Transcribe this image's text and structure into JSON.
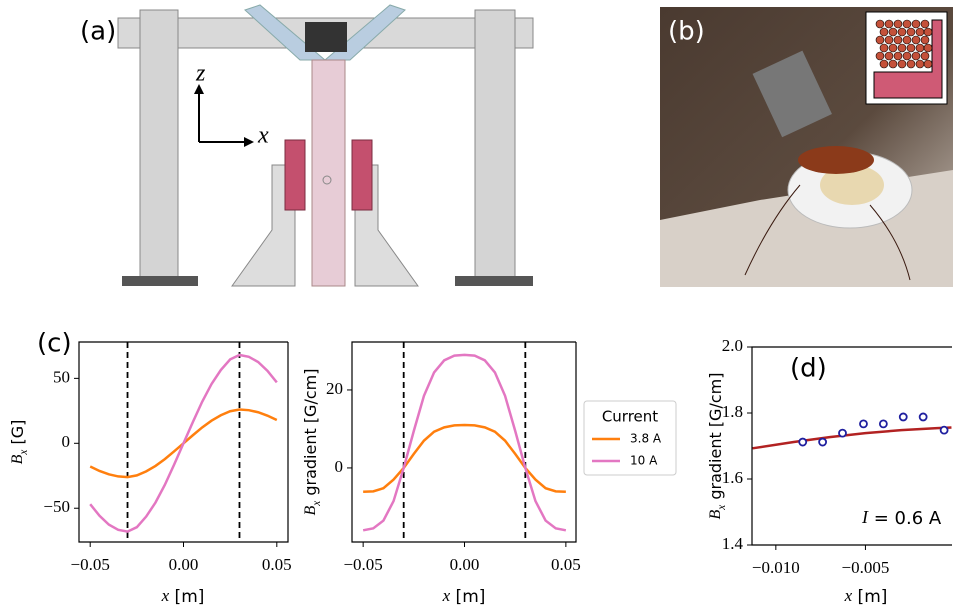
{
  "panels": {
    "a": {
      "label": "(a)",
      "axis_z": "z",
      "axis_x": "x"
    },
    "b": {
      "label": "(b)"
    }
  },
  "chart_data": [
    {
      "type": "line",
      "label": "(c)",
      "xlabel": [
        "x",
        " [m]"
      ],
      "ylabel": [
        "B",
        "x",
        " [G]"
      ],
      "x": [
        -0.05,
        -0.045,
        -0.04,
        -0.035,
        -0.03,
        -0.025,
        -0.02,
        -0.015,
        -0.01,
        -0.005,
        0,
        0.005,
        0.01,
        0.015,
        0.02,
        0.025,
        0.03,
        0.035,
        0.04,
        0.045,
        0.05
      ],
      "series": [
        {
          "color": "#ff7f0e",
          "values": [
            -17.9,
            -21.3,
            -23.9,
            -25.5,
            -26,
            -24.7,
            -21.6,
            -17.4,
            -12.2,
            -6.2,
            0,
            6.2,
            12.2,
            17.4,
            21.6,
            24.7,
            26,
            25.5,
            23.9,
            21.3,
            17.9
          ]
        },
        {
          "color": "#e377c2",
          "values": [
            -46.9,
            -55.8,
            -62.6,
            -66.6,
            -68,
            -64.6,
            -56.4,
            -45.6,
            -32,
            -16.3,
            0,
            16.3,
            32,
            45.6,
            56.4,
            64.6,
            68,
            66.6,
            62.6,
            55.8,
            46.9
          ]
        }
      ],
      "xlim": [
        -0.056,
        0.056
      ],
      "ylim": [
        -76,
        78
      ],
      "xticks": [
        {
          "value": -0.05,
          "label": "−0.05"
        },
        {
          "value": 0,
          "label": "0.00"
        },
        0.05
      ],
      "yticks": [
        {
          "value": -50,
          "label": "−50"
        },
        0,
        50
      ],
      "vlines": [
        -0.03,
        0.03
      ]
    },
    {
      "type": "line",
      "xlabel": [
        "x",
        " [m]"
      ],
      "ylabel": [
        "B",
        "x",
        " gradient [G/cm]"
      ],
      "x": [
        -0.05,
        -0.045,
        -0.04,
        -0.035,
        -0.03,
        -0.025,
        -0.02,
        -0.015,
        -0.01,
        -0.005,
        0,
        0.005,
        0.01,
        0.015,
        0.02,
        0.025,
        0.03,
        0.035,
        0.04,
        0.045,
        0.05
      ],
      "series": [
        {
          "name": "3.8 A",
          "color": "#ff7f0e",
          "values": [
            -6.1,
            -6,
            -5.2,
            -3,
            0,
            3.6,
            7,
            9.3,
            10.4,
            10.9,
            11,
            10.9,
            10.4,
            9.3,
            7,
            3.6,
            0,
            -3,
            -5.2,
            -6,
            -6.1
          ]
        },
        {
          "name": "10 A",
          "color": "#e377c2",
          "values": [
            -16,
            -15.5,
            -13.5,
            -8.5,
            0,
            9.5,
            18.5,
            24.5,
            27.6,
            28.8,
            29,
            28.8,
            27.6,
            24.5,
            18.5,
            9.5,
            0,
            -8.5,
            -13.5,
            -15.5,
            -16
          ]
        }
      ],
      "xlim": [
        -0.0555,
        0.055
      ],
      "ylim": [
        -19,
        32.3
      ],
      "xticks": [
        {
          "value": -0.05,
          "label": "−0.05"
        },
        {
          "value": 0,
          "label": "0.00"
        },
        0.05
      ],
      "yticks": [
        0,
        20
      ],
      "vlines": [
        -0.03,
        0.03
      ],
      "legend": {
        "title": "Current",
        "position": "outside right"
      }
    },
    {
      "type": "scatter",
      "label": "(d)",
      "annotation": [
        "I",
        " = 0.6 A"
      ],
      "xlabel": [
        "x",
        " [m]"
      ],
      "ylabel": [
        "B",
        "x",
        " gradient [G/cm]"
      ],
      "x": [
        -0.0085,
        -0.00739,
        -0.00628,
        -0.00511,
        -0.004,
        -0.00289,
        -0.00178,
        -0.00061
      ],
      "values": [
        1.712,
        1.712,
        1.739,
        1.767,
        1.767,
        1.788,
        1.788,
        1.748
      ],
      "color": "#1f1f9f",
      "fit": {
        "x": [
          -0.0113,
          -0.009,
          -0.007,
          -0.005,
          -0.003,
          -0.001,
          -0.0002
        ],
        "values": [
          1.693,
          1.712,
          1.727,
          1.739,
          1.748,
          1.754,
          1.756
        ],
        "color": "#b22222"
      },
      "xlim": [
        -0.01133,
        -0.00017
      ],
      "ylim": [
        1.4,
        2.0
      ],
      "xticks": [
        {
          "value": -0.01,
          "label": "−0.010"
        },
        {
          "value": -0.005,
          "label": "−0.005"
        }
      ],
      "yticks": [
        1.4,
        1.6,
        1.8,
        {
          "value": 2,
          "label": "2.0"
        }
      ]
    }
  ]
}
